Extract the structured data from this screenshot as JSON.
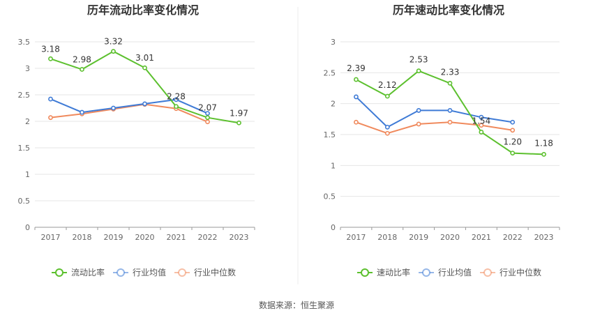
{
  "footer": {
    "source": "数据来源：恒生聚源"
  },
  "chart_data": [
    {
      "type": "line",
      "title": "历年流动比率变化情况",
      "categories": [
        "2017",
        "2018",
        "2019",
        "2020",
        "2021",
        "2022",
        "2023"
      ],
      "ylim": [
        0,
        3.5
      ],
      "yticks": [
        "0",
        "0.5",
        "1",
        "1.5",
        "2",
        "2.5",
        "3",
        "3.5"
      ],
      "grid": true,
      "legend_position": "bottom",
      "series": [
        {
          "name": "流动比率",
          "color": "#5cc02e",
          "labeled": true,
          "values": [
            3.18,
            2.98,
            3.32,
            3.01,
            2.28,
            2.07,
            1.97
          ],
          "labels": [
            "3.18",
            "2.98",
            "3.32",
            "3.01",
            "2.28",
            "2.07",
            "1.97"
          ]
        },
        {
          "name": "行业均值",
          "color": "#3f7bd6",
          "values": [
            2.42,
            2.17,
            2.25,
            2.33,
            2.41,
            2.15,
            null
          ]
        },
        {
          "name": "行业中位数",
          "color": "#f08a5d",
          "values": [
            2.07,
            2.14,
            2.23,
            2.32,
            2.24,
            1.99,
            null
          ]
        }
      ]
    },
    {
      "type": "line",
      "title": "历年速动比率变化情况",
      "categories": [
        "2017",
        "2018",
        "2019",
        "2020",
        "2021",
        "2022",
        "2023"
      ],
      "ylim": [
        0,
        3
      ],
      "yticks": [
        "0",
        "0.5",
        "1",
        "1.5",
        "2",
        "2.5",
        "3"
      ],
      "grid": true,
      "legend_position": "bottom",
      "series": [
        {
          "name": "速动比率",
          "color": "#5cc02e",
          "labeled": true,
          "values": [
            2.39,
            2.12,
            2.53,
            2.33,
            1.54,
            1.2,
            1.18
          ],
          "labels": [
            "2.39",
            "2.12",
            "2.53",
            "2.33",
            "1.54",
            "1.20",
            "1.18"
          ]
        },
        {
          "name": "行业均值",
          "color": "#3f7bd6",
          "values": [
            2.11,
            1.62,
            1.89,
            1.89,
            1.78,
            1.7,
            null
          ]
        },
        {
          "name": "行业中位数",
          "color": "#f08a5d",
          "values": [
            1.7,
            1.52,
            1.67,
            1.7,
            1.65,
            1.57,
            null
          ]
        }
      ]
    }
  ]
}
